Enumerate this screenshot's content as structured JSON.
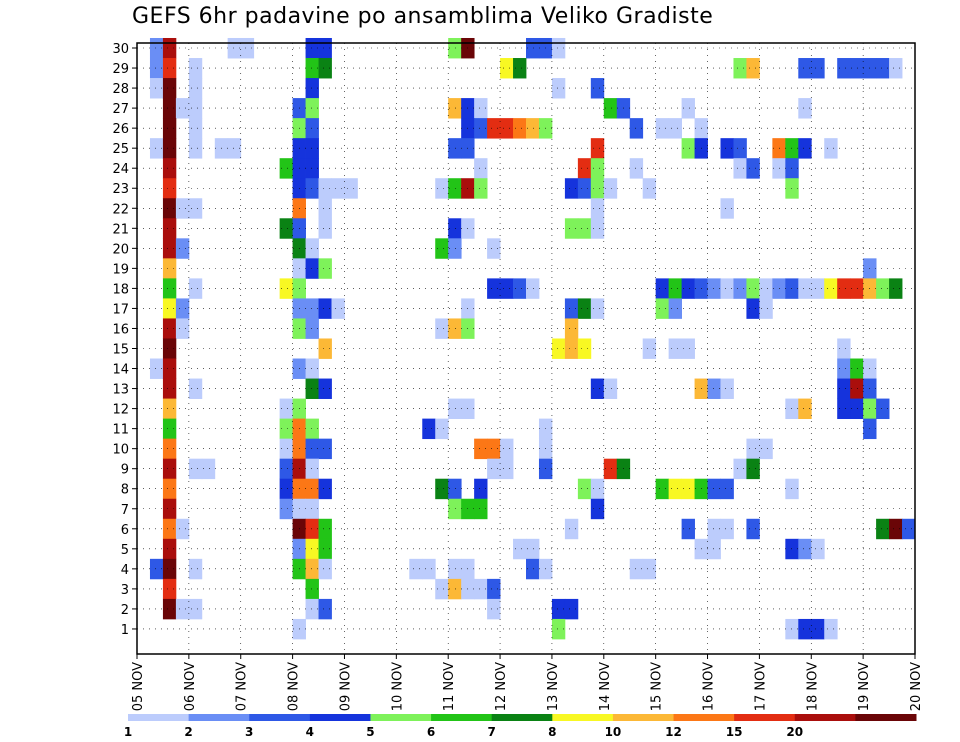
{
  "title": "GEFS 6hr padavine po ansamblima Veliko Gradiste",
  "chart_data": {
    "type": "heatmap",
    "title": "GEFS 6hr padavine po ansamblima Veliko Gradiste",
    "xlabel": "",
    "ylabel": "",
    "x_ticks": [
      "05 NOV",
      "06 NOV",
      "07 NOV",
      "08 NOV",
      "09 NOV",
      "10 NOV",
      "11 NOV",
      "12 NOV",
      "13 NOV",
      "14 NOV",
      "15 NOV",
      "16 NOV",
      "17 NOV",
      "18 NOV",
      "19 NOV",
      "20 NOV"
    ],
    "y_ticks": [
      "1",
      "2",
      "3",
      "4",
      "5",
      "6",
      "7",
      "8",
      "9",
      "10",
      "11",
      "12",
      "13",
      "14",
      "15",
      "16",
      "17",
      "18",
      "19",
      "20",
      "21",
      "22",
      "23",
      "24",
      "25",
      "26",
      "27",
      "28",
      "29",
      "30"
    ],
    "x_range": [
      "05 NOV 00Z",
      "20 NOV 00Z"
    ],
    "y_range": [
      0,
      30
    ],
    "grid": true,
    "cell_units": "day offset (0.25 = 6 h) from 05 NOV 00Z, ensemble member",
    "colorbar": {
      "labels": [
        "1",
        "2",
        "3",
        "4",
        "5",
        "6",
        "7",
        "8",
        "10",
        "12",
        "15",
        "20"
      ],
      "colors": [
        "#bcccfc",
        "#6a8ef5",
        "#2e58e6",
        "#1533dc",
        "#7ef25a",
        "#22c417",
        "#0a8214",
        "#f8f823",
        "#fcb836",
        "#fc7716",
        "#e32d12",
        "#aa0e0c",
        "#6a0507"
      ]
    },
    "cells": [
      [
        0.25,
        30,
        1
      ],
      [
        0.5,
        30,
        11
      ],
      [
        1.75,
        30,
        0
      ],
      [
        1.75,
        30,
        0
      ],
      [
        2,
        30,
        0
      ],
      [
        3.25,
        30,
        3
      ],
      [
        3.5,
        30,
        3
      ],
      [
        6.0,
        30,
        4
      ],
      [
        6.25,
        30,
        12
      ],
      [
        7.5,
        30,
        2
      ],
      [
        7.75,
        30,
        2
      ],
      [
        8.0,
        30,
        0
      ],
      [
        0.25,
        29,
        1
      ],
      [
        0.5,
        29,
        10
      ],
      [
        1.0,
        29,
        0
      ],
      [
        3.25,
        29,
        5
      ],
      [
        3.5,
        29,
        6
      ],
      [
        7.0,
        29,
        7
      ],
      [
        7.25,
        29,
        6
      ],
      [
        11.5,
        29,
        4
      ],
      [
        11.75,
        29,
        8
      ],
      [
        12.75,
        29,
        2
      ],
      [
        13.0,
        29,
        2
      ],
      [
        13.5,
        29,
        2
      ],
      [
        13.75,
        29,
        2
      ],
      [
        14.0,
        29,
        2
      ],
      [
        14.25,
        29,
        2
      ],
      [
        14.5,
        29,
        0
      ],
      [
        0.25,
        28,
        0
      ],
      [
        0.5,
        28,
        12
      ],
      [
        1.0,
        28,
        0
      ],
      [
        3.25,
        28,
        3
      ],
      [
        8.0,
        28,
        0
      ],
      [
        8.75,
        28,
        2
      ],
      [
        0.5,
        27,
        12
      ],
      [
        0.75,
        27,
        0
      ],
      [
        1.0,
        27,
        0
      ],
      [
        3.0,
        27,
        2
      ],
      [
        3.25,
        27,
        4
      ],
      [
        6.0,
        27,
        8
      ],
      [
        6.25,
        27,
        3
      ],
      [
        6.5,
        27,
        0
      ],
      [
        9.0,
        27,
        5
      ],
      [
        9.25,
        27,
        2
      ],
      [
        10.5,
        27,
        0
      ],
      [
        12.75,
        27,
        0
      ],
      [
        0.5,
        26,
        12
      ],
      [
        1.0,
        26,
        0
      ],
      [
        3.0,
        26,
        4
      ],
      [
        3.25,
        26,
        2
      ],
      [
        6.25,
        26,
        3
      ],
      [
        6.5,
        26,
        2
      ],
      [
        6.75,
        26,
        10
      ],
      [
        7.0,
        26,
        10
      ],
      [
        7.25,
        26,
        9
      ],
      [
        7.5,
        26,
        8
      ],
      [
        7.75,
        26,
        4
      ],
      [
        9.5,
        26,
        2
      ],
      [
        10.0,
        26,
        0
      ],
      [
        10.25,
        26,
        0
      ],
      [
        10.75,
        26,
        0
      ],
      [
        0.25,
        25,
        0
      ],
      [
        0.5,
        25,
        12
      ],
      [
        1.0,
        25,
        0
      ],
      [
        1.5,
        25,
        0
      ],
      [
        1.75,
        25,
        0
      ],
      [
        3.0,
        25,
        3
      ],
      [
        3.25,
        25,
        3
      ],
      [
        6.0,
        25,
        2
      ],
      [
        6.25,
        25,
        2
      ],
      [
        8.75,
        25,
        10
      ],
      [
        10.5,
        25,
        4
      ],
      [
        10.75,
        25,
        3
      ],
      [
        11.25,
        25,
        3
      ],
      [
        11.5,
        25,
        2
      ],
      [
        12.25,
        25,
        9
      ],
      [
        12.5,
        25,
        5
      ],
      [
        12.75,
        25,
        3
      ],
      [
        13.25,
        25,
        0
      ],
      [
        0.5,
        24,
        11
      ],
      [
        2.75,
        24,
        5
      ],
      [
        3.0,
        24,
        3
      ],
      [
        3.25,
        24,
        3
      ],
      [
        6.5,
        24,
        0
      ],
      [
        8.5,
        24,
        10
      ],
      [
        8.75,
        24,
        4
      ],
      [
        9.5,
        24,
        0
      ],
      [
        11.5,
        24,
        0
      ],
      [
        11.75,
        24,
        2
      ],
      [
        12.25,
        24,
        0
      ],
      [
        12.5,
        24,
        2
      ],
      [
        0.5,
        23,
        10
      ],
      [
        3.0,
        23,
        3
      ],
      [
        3.25,
        23,
        2
      ],
      [
        3.5,
        23,
        0
      ],
      [
        3.75,
        23,
        0
      ],
      [
        4.0,
        23,
        0
      ],
      [
        5.75,
        23,
        0
      ],
      [
        6.0,
        23,
        5
      ],
      [
        6.25,
        23,
        11
      ],
      [
        6.5,
        23,
        4
      ],
      [
        8.25,
        23,
        3
      ],
      [
        8.5,
        23,
        2
      ],
      [
        8.75,
        23,
        4
      ],
      [
        9.0,
        23,
        0
      ],
      [
        9.75,
        23,
        0
      ],
      [
        12.5,
        23,
        4
      ],
      [
        0.5,
        22,
        12
      ],
      [
        0.75,
        22,
        0
      ],
      [
        1.0,
        22,
        0
      ],
      [
        3.0,
        22,
        9
      ],
      [
        3.5,
        22,
        0
      ],
      [
        8.75,
        22,
        0
      ],
      [
        11.25,
        22,
        0
      ],
      [
        0.5,
        21,
        11
      ],
      [
        2.75,
        21,
        6
      ],
      [
        3.0,
        21,
        2
      ],
      [
        3.5,
        21,
        0
      ],
      [
        6.0,
        21,
        3
      ],
      [
        6.25,
        21,
        0
      ],
      [
        8.25,
        21,
        4
      ],
      [
        8.5,
        21,
        4
      ],
      [
        8.75,
        21,
        0
      ],
      [
        0.5,
        20,
        11
      ],
      [
        0.75,
        20,
        1
      ],
      [
        3.0,
        20,
        6
      ],
      [
        3.25,
        20,
        0
      ],
      [
        5.75,
        20,
        5
      ],
      [
        6.0,
        20,
        1
      ],
      [
        6.75,
        20,
        0
      ],
      [
        0.5,
        19,
        8
      ],
      [
        3.0,
        19,
        0
      ],
      [
        3.25,
        19,
        3
      ],
      [
        3.5,
        19,
        4
      ],
      [
        14.0,
        19,
        1
      ],
      [
        0.5,
        18,
        5
      ],
      [
        1.0,
        18,
        0
      ],
      [
        2.75,
        18,
        7
      ],
      [
        3.0,
        18,
        4
      ],
      [
        6.75,
        18,
        3
      ],
      [
        7.0,
        18,
        3
      ],
      [
        7.25,
        18,
        2
      ],
      [
        7.5,
        18,
        0
      ],
      [
        10.0,
        18,
        3
      ],
      [
        10.25,
        18,
        5
      ],
      [
        10.5,
        18,
        3
      ],
      [
        10.75,
        18,
        2
      ],
      [
        11.0,
        18,
        1
      ],
      [
        11.25,
        18,
        0
      ],
      [
        11.5,
        18,
        1
      ],
      [
        11.75,
        18,
        4
      ],
      [
        12.0,
        18,
        0
      ],
      [
        12.25,
        18,
        1
      ],
      [
        12.5,
        18,
        2
      ],
      [
        12.75,
        18,
        0
      ],
      [
        13.0,
        18,
        0
      ],
      [
        13.25,
        18,
        7
      ],
      [
        13.5,
        18,
        10
      ],
      [
        13.75,
        18,
        10
      ],
      [
        14.0,
        18,
        8
      ],
      [
        14.25,
        18,
        4
      ],
      [
        14.5,
        18,
        6
      ],
      [
        0.5,
        17,
        7
      ],
      [
        0.75,
        17,
        1
      ],
      [
        3.0,
        17,
        1
      ],
      [
        3.25,
        17,
        1
      ],
      [
        3.5,
        17,
        3
      ],
      [
        3.75,
        17,
        0
      ],
      [
        6.25,
        17,
        0
      ],
      [
        8.25,
        17,
        2
      ],
      [
        8.5,
        17,
        6
      ],
      [
        8.75,
        17,
        0
      ],
      [
        10.0,
        17,
        4
      ],
      [
        10.25,
        17,
        1
      ],
      [
        11.75,
        17,
        3
      ],
      [
        12.0,
        17,
        0
      ],
      [
        0.5,
        16,
        11
      ],
      [
        0.75,
        16,
        0
      ],
      [
        3.0,
        16,
        4
      ],
      [
        3.25,
        16,
        1
      ],
      [
        5.75,
        16,
        0
      ],
      [
        6.0,
        16,
        8
      ],
      [
        6.25,
        16,
        4
      ],
      [
        8.25,
        16,
        8
      ],
      [
        0.5,
        15,
        12
      ],
      [
        3.5,
        15,
        8
      ],
      [
        8.0,
        15,
        7
      ],
      [
        8.25,
        15,
        8
      ],
      [
        8.5,
        15,
        7
      ],
      [
        9.75,
        15,
        0
      ],
      [
        10.25,
        15,
        0
      ],
      [
        10.5,
        15,
        0
      ],
      [
        13.5,
        15,
        0
      ],
      [
        0.25,
        14,
        0
      ],
      [
        0.5,
        14,
        11
      ],
      [
        3.0,
        14,
        1
      ],
      [
        3.25,
        14,
        0
      ],
      [
        13.5,
        14,
        1
      ],
      [
        13.75,
        14,
        5
      ],
      [
        14.0,
        14,
        0
      ],
      [
        0.5,
        13,
        11
      ],
      [
        1.0,
        13,
        0
      ],
      [
        3.25,
        13,
        6
      ],
      [
        3.5,
        13,
        3
      ],
      [
        8.75,
        13,
        3
      ],
      [
        9.0,
        13,
        0
      ],
      [
        10.75,
        13,
        8
      ],
      [
        11.0,
        13,
        1
      ],
      [
        11.25,
        13,
        0
      ],
      [
        13.5,
        13,
        3
      ],
      [
        13.75,
        13,
        11
      ],
      [
        14.0,
        13,
        2
      ],
      [
        0.5,
        12,
        8
      ],
      [
        2.75,
        12,
        0
      ],
      [
        3.0,
        12,
        4
      ],
      [
        6.0,
        12,
        0
      ],
      [
        6.25,
        12,
        0
      ],
      [
        12.5,
        12,
        0
      ],
      [
        12.75,
        12,
        8
      ],
      [
        13.5,
        12,
        3
      ],
      [
        13.75,
        12,
        3
      ],
      [
        14.0,
        12,
        4
      ],
      [
        14.25,
        12,
        2
      ],
      [
        0.5,
        11,
        5
      ],
      [
        2.75,
        11,
        4
      ],
      [
        3.0,
        11,
        9
      ],
      [
        3.25,
        11,
        4
      ],
      [
        5.5,
        11,
        3
      ],
      [
        5.75,
        11,
        0
      ],
      [
        7.75,
        11,
        0
      ],
      [
        14.0,
        11,
        2
      ],
      [
        0.5,
        10,
        9
      ],
      [
        2.75,
        10,
        0
      ],
      [
        3.0,
        10,
        9
      ],
      [
        3.25,
        10,
        2
      ],
      [
        3.5,
        10,
        2
      ],
      [
        6.5,
        10,
        9
      ],
      [
        6.75,
        10,
        9
      ],
      [
        7.0,
        10,
        0
      ],
      [
        7.75,
        10,
        0
      ],
      [
        11.75,
        10,
        0
      ],
      [
        12.0,
        10,
        0
      ],
      [
        0.5,
        9,
        11
      ],
      [
        1.0,
        9,
        0
      ],
      [
        1.25,
        9,
        0
      ],
      [
        2.75,
        9,
        2
      ],
      [
        3.0,
        9,
        11
      ],
      [
        3.25,
        9,
        0
      ],
      [
        6.75,
        9,
        0
      ],
      [
        7.0,
        9,
        0
      ],
      [
        7.75,
        9,
        2
      ],
      [
        9.0,
        9,
        10
      ],
      [
        9.25,
        9,
        6
      ],
      [
        11.5,
        9,
        0
      ],
      [
        11.75,
        9,
        6
      ],
      [
        0.5,
        8,
        9
      ],
      [
        2.75,
        8,
        3
      ],
      [
        3.0,
        8,
        9
      ],
      [
        3.25,
        8,
        9
      ],
      [
        3.5,
        8,
        3
      ],
      [
        5.75,
        8,
        6
      ],
      [
        6.0,
        8,
        2
      ],
      [
        6.5,
        8,
        3
      ],
      [
        8.5,
        8,
        4
      ],
      [
        8.75,
        8,
        0
      ],
      [
        10.0,
        8,
        5
      ],
      [
        10.25,
        8,
        7
      ],
      [
        10.5,
        8,
        7
      ],
      [
        10.75,
        8,
        5
      ],
      [
        11.0,
        8,
        2
      ],
      [
        11.25,
        8,
        2
      ],
      [
        12.5,
        8,
        0
      ],
      [
        0.5,
        7,
        11
      ],
      [
        2.75,
        7,
        1
      ],
      [
        3.0,
        7,
        0
      ],
      [
        3.25,
        7,
        0
      ],
      [
        6.0,
        7,
        4
      ],
      [
        6.25,
        7,
        5
      ],
      [
        6.5,
        7,
        5
      ],
      [
        8.75,
        7,
        3
      ],
      [
        0.5,
        6,
        9
      ],
      [
        0.75,
        6,
        0
      ],
      [
        3.0,
        6,
        12
      ],
      [
        3.25,
        6,
        10
      ],
      [
        3.5,
        6,
        5
      ],
      [
        8.25,
        6,
        0
      ],
      [
        10.5,
        6,
        2
      ],
      [
        11.0,
        6,
        0
      ],
      [
        11.25,
        6,
        0
      ],
      [
        11.75,
        6,
        2
      ],
      [
        14.25,
        6,
        6
      ],
      [
        14.5,
        6,
        12
      ],
      [
        14.75,
        6,
        2
      ],
      [
        0.5,
        5,
        11
      ],
      [
        3.0,
        5,
        1
      ],
      [
        3.25,
        5,
        7
      ],
      [
        3.5,
        5,
        5
      ],
      [
        7.25,
        5,
        0
      ],
      [
        7.5,
        5,
        0
      ],
      [
        10.75,
        5,
        0
      ],
      [
        11.0,
        5,
        0
      ],
      [
        12.5,
        5,
        3
      ],
      [
        12.75,
        5,
        1
      ],
      [
        13.0,
        5,
        0
      ],
      [
        0.25,
        4,
        2
      ],
      [
        0.5,
        4,
        12
      ],
      [
        1.0,
        4,
        0
      ],
      [
        3.0,
        4,
        5
      ],
      [
        3.25,
        4,
        8
      ],
      [
        3.5,
        4,
        0
      ],
      [
        5.25,
        4,
        0
      ],
      [
        5.5,
        4,
        0
      ],
      [
        6.0,
        4,
        0
      ],
      [
        6.25,
        4,
        0
      ],
      [
        7.5,
        4,
        2
      ],
      [
        7.75,
        4,
        0
      ],
      [
        9.5,
        4,
        0
      ],
      [
        9.75,
        4,
        0
      ],
      [
        0.5,
        3,
        10
      ],
      [
        3.25,
        3,
        5
      ],
      [
        5.75,
        3,
        0
      ],
      [
        6.0,
        3,
        8
      ],
      [
        6.25,
        3,
        0
      ],
      [
        6.5,
        3,
        0
      ],
      [
        6.75,
        3,
        2
      ],
      [
        0.5,
        2,
        12
      ],
      [
        0.75,
        2,
        0
      ],
      [
        1.0,
        2,
        0
      ],
      [
        3.25,
        2,
        0
      ],
      [
        3.5,
        2,
        2
      ],
      [
        6.75,
        2,
        0
      ],
      [
        8.0,
        2,
        3
      ],
      [
        8.25,
        2,
        3
      ],
      [
        3.0,
        1,
        0
      ],
      [
        8.0,
        1,
        4
      ],
      [
        12.5,
        1,
        0
      ],
      [
        12.75,
        1,
        3
      ],
      [
        13.0,
        1,
        3
      ],
      [
        13.25,
        1,
        0
      ]
    ]
  }
}
